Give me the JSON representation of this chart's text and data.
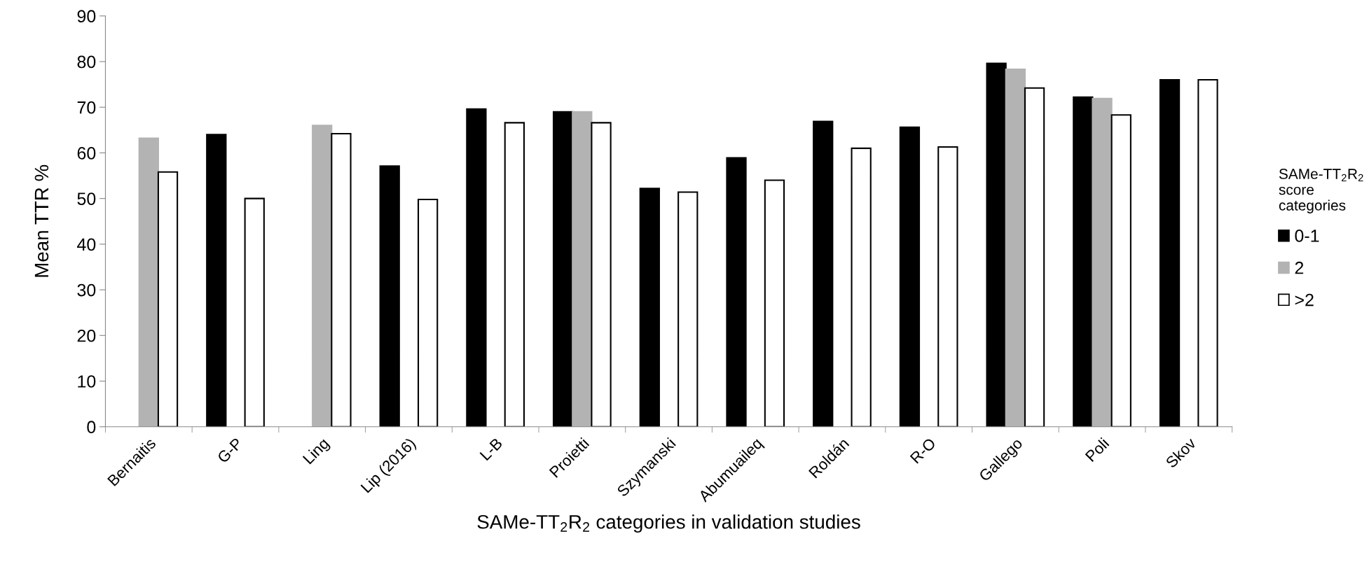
{
  "chart_data": {
    "type": "bar",
    "xlabel": "SAMe-TT$_{2}$R$_{2}$ categories in validation studies",
    "ylabel": "Mean TTR %",
    "legend_title": "SAMe-TT$_{2}$R$_{2}$\nscore\ncategories",
    "categories": [
      "Bernaitis",
      "G-P",
      "Ling",
      "Lip (2016)",
      "L-B",
      "Proietti",
      "Szymanski",
      "Abumuaileq",
      "Roldán",
      "R-O",
      "Gallego",
      "Poli",
      "Skov"
    ],
    "series": [
      {
        "name": "0-1",
        "color": "#000000",
        "values": [
          null,
          64,
          null,
          57.1,
          69.6,
          69,
          52.2,
          58.9,
          66.9,
          65.6,
          79.6,
          72.2,
          76
        ]
      },
      {
        "name": "2",
        "color": "#b3b3b3",
        "values": [
          63.2,
          null,
          66,
          null,
          null,
          69,
          null,
          null,
          null,
          null,
          78.3,
          71.9,
          null
        ]
      },
      {
        "name": ">2",
        "color": "#ffffff",
        "values": [
          55.8,
          50,
          64.2,
          49.8,
          66.6,
          66.6,
          51.4,
          54,
          61,
          61.3,
          74.2,
          68.3,
          76
        ]
      }
    ],
    "ylim": [
      0,
      90
    ],
    "yticks": [
      0,
      10,
      20,
      30,
      40,
      50,
      60,
      70,
      80,
      90
    ],
    "grid": false,
    "legend": "right"
  }
}
